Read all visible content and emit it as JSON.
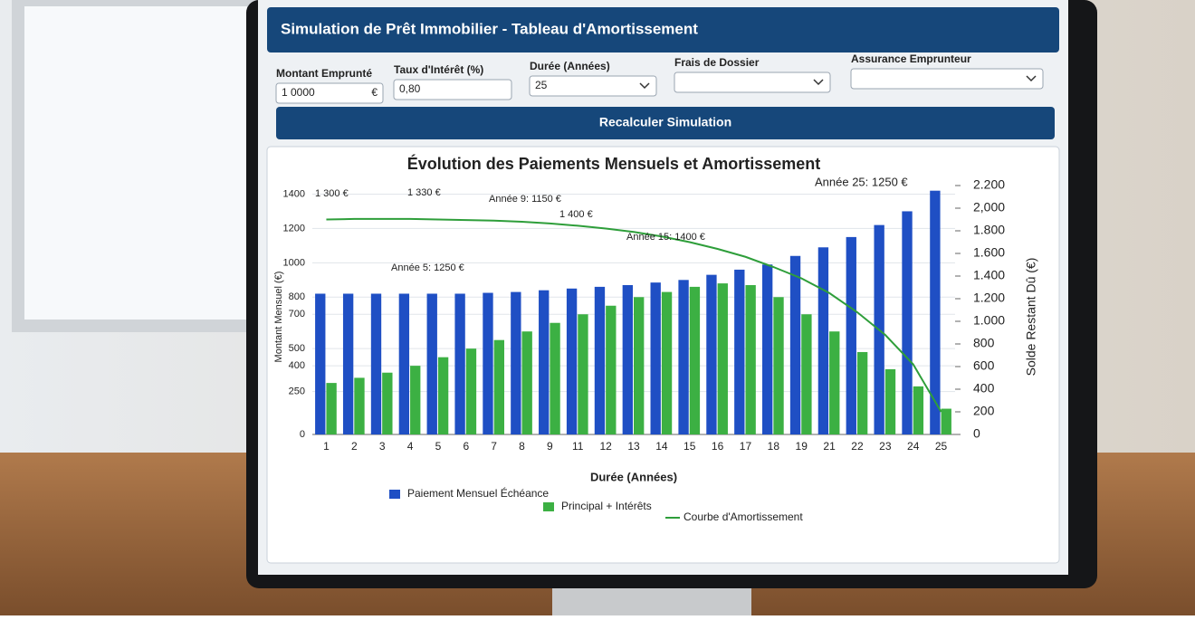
{
  "header": {
    "title": "Simulation de Prêt Immobilier - Tableau d'Amortissement"
  },
  "form": {
    "fields": [
      {
        "label": "Montant Emprunté",
        "value": "1 0000",
        "suffix": "€"
      },
      {
        "label": "Taux d'Intérêt (%)",
        "value": "0,80"
      },
      {
        "label": "Durée (Années)",
        "value": "25"
      },
      {
        "label": "Frais de Dossier"
      },
      {
        "label": "Assurance Emprunteur"
      }
    ],
    "button": "Recalculer Simulation"
  },
  "chart_data": {
    "type": "bar",
    "title": "Évolution des Paiements Mensuels et Amortissement",
    "x_label": "Durée (Années)",
    "y_label": "Montant Mensuel (€)",
    "y2_label": "Solde Restant Dû (€)",
    "categories": [
      "1",
      "2",
      "3",
      "4",
      "5",
      "6",
      "7",
      "8",
      "9",
      "11",
      "12",
      "13",
      "14",
      "15",
      "16",
      "17",
      "18",
      "19",
      "21",
      "22",
      "23",
      "24",
      "25"
    ],
    "series": [
      {
        "name": "Paiement Mensuel Échéance",
        "color": "#1f4fc4",
        "type": "bar",
        "values": [
          820,
          820,
          820,
          820,
          820,
          820,
          825,
          830,
          840,
          850,
          860,
          870,
          885,
          900,
          930,
          960,
          990,
          1040,
          1090,
          1150,
          1220,
          1300,
          1420
        ]
      },
      {
        "name": "Principal + Intérêts",
        "color": "#3cb043",
        "type": "bar",
        "values": [
          300,
          330,
          360,
          400,
          450,
          500,
          550,
          600,
          650,
          700,
          750,
          800,
          830,
          860,
          880,
          870,
          800,
          700,
          600,
          480,
          380,
          280,
          150
        ]
      },
      {
        "name": "Courbe d'Amortissement",
        "color": "#2e9e3a",
        "type": "line",
        "axis": "y2",
        "values": [
          1900,
          1905,
          1905,
          1905,
          1900,
          1895,
          1890,
          1880,
          1865,
          1845,
          1820,
          1790,
          1750,
          1700,
          1640,
          1570,
          1480,
          1380,
          1250,
          1080,
          880,
          620,
          200
        ]
      }
    ],
    "ylim": [
      0,
      1450
    ],
    "yticks": [
      0,
      250,
      400,
      500,
      700,
      800,
      1000,
      1200,
      1400
    ],
    "y2lim": [
      0,
      2200
    ],
    "y2ticks": [
      0,
      200,
      400,
      600,
      800,
      {
        "value": 1000,
        "label": "1.000"
      },
      {
        "value": 1200,
        "label": "1.200"
      },
      {
        "value": 1400,
        "label": "1.400"
      },
      {
        "value": 1600,
        "label": "1.600"
      },
      {
        "value": 1800,
        "label": "1.800"
      },
      {
        "value": 2000,
        "label": "2,000"
      },
      {
        "value": 2200,
        "label": "2.200"
      }
    ],
    "grid": true,
    "annotations": [
      "1 300 €",
      "1 330 €",
      "Année 9: 1150 €",
      "1 400 €",
      "Année 15: 1400 €",
      "Année 5: 1250 €",
      "Année 25: 1250 €"
    ]
  }
}
